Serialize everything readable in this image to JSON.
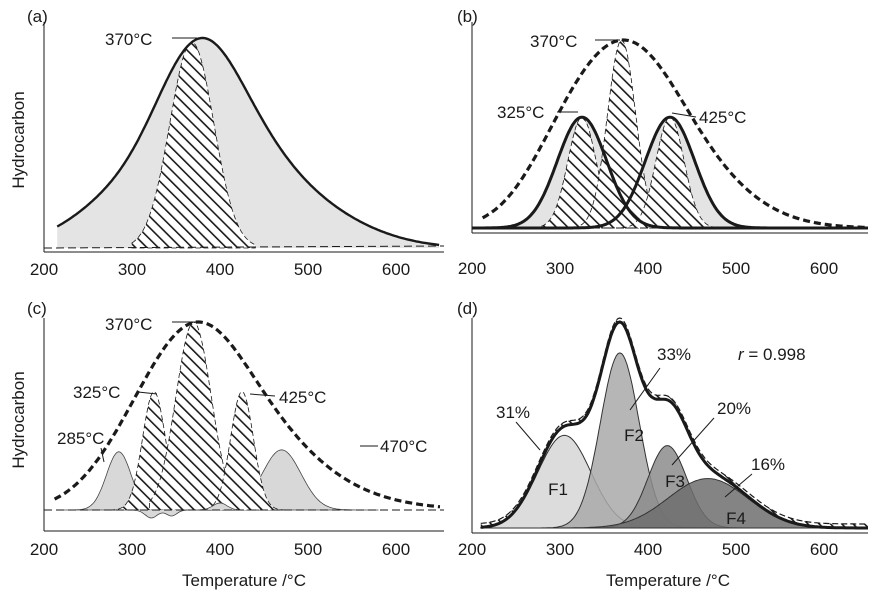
{
  "chart_data": [
    {
      "panel": "(a)",
      "type": "area",
      "xlabel": "",
      "ylabel": "Hydrocarbon",
      "xlim": [
        200,
        650
      ],
      "x_ticks": [
        "200",
        "300",
        "400",
        "500",
        "600"
      ],
      "annotations": [
        {
          "text": "370°C",
          "x": 370
        }
      ],
      "series": [
        {
          "role": "total",
          "peaks": [
            [
              370,
              1.0,
              46
            ],
            [
              290,
              0.35,
              55
            ],
            [
              420,
              0.55,
              55
            ],
            [
              490,
              0.28,
              70
            ]
          ],
          "baseline_tail": 0.02
        },
        {
          "role": "hatched",
          "peaks": [
            [
              368,
              1.0,
              25
            ]
          ]
        }
      ]
    },
    {
      "panel": "(b)",
      "type": "area",
      "xlabel": "",
      "ylabel": "",
      "xlim": [
        200,
        650
      ],
      "x_ticks": [
        "200",
        "300",
        "400",
        "500",
        "600"
      ],
      "annotations": [
        {
          "text": "370°C",
          "x": 370
        },
        {
          "text": "325°C",
          "x": 325
        },
        {
          "text": "425°C",
          "x": 425
        }
      ],
      "series": [
        {
          "role": "measured",
          "peaks": [
            [
              370,
              1.0,
              60
            ],
            [
              300,
              0.25,
              45
            ],
            [
              440,
              0.35,
              70
            ]
          ]
        },
        {
          "role": "fitted",
          "peaks": [
            [
              325,
              0.59,
              28
            ],
            [
              425,
              0.59,
              28
            ]
          ]
        },
        {
          "role": "hatched",
          "peaks": [
            [
              325,
              0.59,
              16
            ],
            [
              370,
              1.0,
              16
            ],
            [
              425,
              0.59,
              16
            ]
          ]
        }
      ]
    },
    {
      "panel": "(c)",
      "type": "area",
      "xlabel": "Temperature /°C",
      "ylabel": "Hydrocarbon",
      "xlim": [
        200,
        650
      ],
      "x_ticks": [
        "200",
        "300",
        "400",
        "500",
        "600"
      ],
      "annotations": [
        {
          "text": "370°C",
          "x": 370
        },
        {
          "text": "325°C",
          "x": 325
        },
        {
          "text": "425°C",
          "x": 425
        },
        {
          "text": "285°C",
          "x": 285
        },
        {
          "text": "470°C",
          "x": 470
        }
      ],
      "series": [
        {
          "role": "measured",
          "peaks": [
            [
              370,
              1.0,
              55
            ],
            [
              300,
              0.3,
              50
            ],
            [
              440,
              0.45,
              65
            ],
            [
              510,
              0.1,
              80
            ]
          ]
        },
        {
          "role": "residual",
          "peaks": [
            [
              285,
              0.31,
              14
            ],
            [
              470,
              0.32,
              22
            ]
          ]
        },
        {
          "role": "hatched",
          "peaks": [
            [
              325,
              0.63,
              13
            ],
            [
              370,
              1.0,
              20
            ],
            [
              425,
              0.63,
              13
            ]
          ]
        }
      ]
    },
    {
      "panel": "(d)",
      "type": "area",
      "xlabel": "Temperature /°C",
      "ylabel": "",
      "xlim": [
        200,
        650
      ],
      "x_ticks": [
        "200",
        "300",
        "400",
        "500",
        "600"
      ],
      "r_label_prefix": "r",
      "r_label_suffix": " = 0.998",
      "annotations": [
        {
          "text": "31%",
          "x": 305
        },
        {
          "text": "33%",
          "x": 368
        },
        {
          "text": "20%",
          "x": 422
        },
        {
          "text": "16%",
          "x": 468
        }
      ],
      "series": [
        {
          "name": "F1",
          "share": "31%",
          "peak_x": 305,
          "height": 0.45,
          "sigma": 30,
          "color": "#d6d6d6"
        },
        {
          "name": "F2",
          "share": "33%",
          "peak_x": 368,
          "height": 0.85,
          "sigma": 22,
          "color": "#a9a9a9"
        },
        {
          "name": "F3",
          "share": "20%",
          "peak_x": 422,
          "height": 0.4,
          "sigma": 22,
          "color": "#8c8c8c"
        },
        {
          "name": "F4",
          "share": "16%",
          "peak_x": 468,
          "height": 0.24,
          "sigma": 45,
          "color": "#6e6e6e"
        }
      ]
    }
  ]
}
